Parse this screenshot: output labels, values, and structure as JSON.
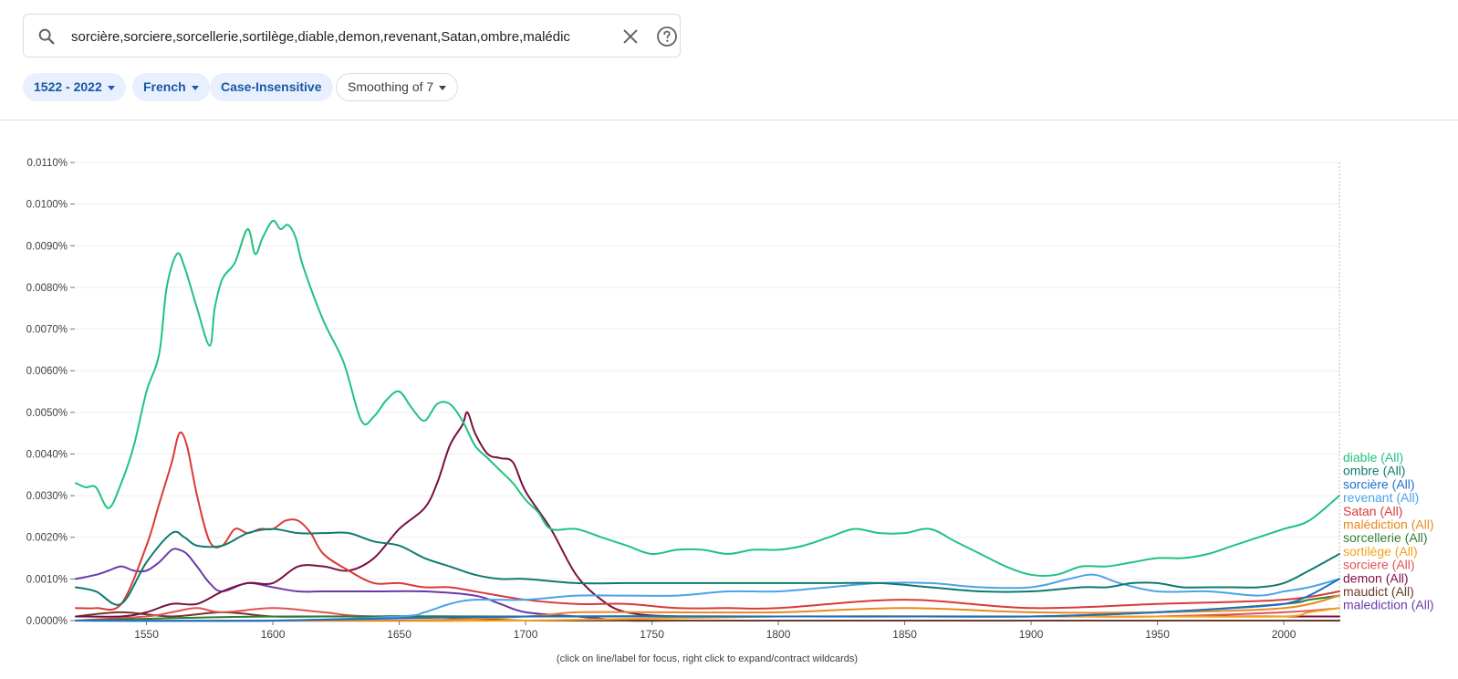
{
  "search": {
    "query": "sorcière,sorciere,sorcellerie,sortilège,diable,demon,revenant,Satan,ombre,malédic",
    "icon": "search-icon",
    "clear_icon": "close-icon",
    "help_icon": "help-icon"
  },
  "filters": {
    "year_range": "1522 - 2022",
    "language": "French",
    "case": "Case-Insensitive",
    "smoothing": "Smoothing of 7"
  },
  "footer_note": "(click on line/label for focus, right click to expand/contract wildcards)",
  "chart_data": {
    "type": "line",
    "title": "",
    "xlabel": "",
    "ylabel": "",
    "xlim": [
      1522,
      2022
    ],
    "ylim": [
      0,
      0.011
    ],
    "x_ticks": [
      1550,
      1600,
      1650,
      1700,
      1750,
      1800,
      1850,
      1900,
      1950,
      2000
    ],
    "y_ticks": [
      {
        "value": 0.0,
        "label": "0.0000%"
      },
      {
        "value": 0.001,
        "label": "0.0010%"
      },
      {
        "value": 0.002,
        "label": "0.0020%"
      },
      {
        "value": 0.003,
        "label": "0.0030%"
      },
      {
        "value": 0.004,
        "label": "0.0040%"
      },
      {
        "value": 0.005,
        "label": "0.0050%"
      },
      {
        "value": 0.006,
        "label": "0.0060%"
      },
      {
        "value": 0.007,
        "label": "0.0070%"
      },
      {
        "value": 0.008,
        "label": "0.0080%"
      },
      {
        "value": 0.009,
        "label": "0.0090%"
      },
      {
        "value": 0.01,
        "label": "0.0100%"
      },
      {
        "value": 0.011,
        "label": "0.0110%"
      }
    ],
    "series": [
      {
        "name": "diable (All)",
        "key": "diable",
        "color": "#1ec37e",
        "x": [
          1522,
          1526,
          1530,
          1535,
          1540,
          1545,
          1550,
          1555,
          1558,
          1562,
          1565,
          1570,
          1575,
          1577,
          1580,
          1585,
          1590,
          1593,
          1596,
          1600,
          1603,
          1606,
          1609,
          1612,
          1620,
          1628,
          1635,
          1640,
          1645,
          1650,
          1655,
          1660,
          1665,
          1670,
          1675,
          1680,
          1685,
          1690,
          1695,
          1700,
          1705,
          1710,
          1720,
          1730,
          1740,
          1750,
          1760,
          1770,
          1780,
          1790,
          1800,
          1810,
          1820,
          1830,
          1840,
          1850,
          1860,
          1870,
          1880,
          1890,
          1900,
          1910,
          1920,
          1930,
          1940,
          1950,
          1960,
          1970,
          1980,
          1990,
          2000,
          2010,
          2022
        ],
        "y": [
          0.0033,
          0.0032,
          0.0032,
          0.0027,
          0.0033,
          0.0042,
          0.0055,
          0.0064,
          0.008,
          0.0088,
          0.0085,
          0.0075,
          0.0066,
          0.0075,
          0.0082,
          0.0086,
          0.0094,
          0.0088,
          0.0092,
          0.0096,
          0.0094,
          0.0095,
          0.0092,
          0.0085,
          0.0072,
          0.0062,
          0.0048,
          0.0049,
          0.0053,
          0.0055,
          0.0051,
          0.0048,
          0.0052,
          0.0052,
          0.0048,
          0.0042,
          0.0039,
          0.0036,
          0.0033,
          0.0029,
          0.0026,
          0.0022,
          0.0022,
          0.002,
          0.0018,
          0.0016,
          0.0017,
          0.0017,
          0.0016,
          0.0017,
          0.0017,
          0.0018,
          0.002,
          0.0022,
          0.0021,
          0.0021,
          0.0022,
          0.0019,
          0.0016,
          0.0013,
          0.0011,
          0.0011,
          0.0013,
          0.0013,
          0.0014,
          0.0015,
          0.0015,
          0.0016,
          0.0018,
          0.002,
          0.0022,
          0.0024,
          0.003
        ]
      },
      {
        "name": "ombre (All)",
        "key": "ombre",
        "color": "#0f7a6e",
        "x": [
          1522,
          1530,
          1540,
          1550,
          1560,
          1565,
          1570,
          1580,
          1590,
          1600,
          1610,
          1620,
          1630,
          1640,
          1650,
          1660,
          1670,
          1680,
          1690,
          1700,
          1720,
          1740,
          1760,
          1780,
          1800,
          1820,
          1840,
          1860,
          1880,
          1900,
          1920,
          1930,
          1940,
          1950,
          1960,
          1970,
          1980,
          1990,
          2000,
          2010,
          2022
        ],
        "y": [
          0.0008,
          0.0007,
          0.0004,
          0.0014,
          0.0021,
          0.002,
          0.0018,
          0.0018,
          0.0021,
          0.0022,
          0.0021,
          0.0021,
          0.0021,
          0.0019,
          0.0018,
          0.0015,
          0.0013,
          0.0011,
          0.001,
          0.001,
          0.0009,
          0.0009,
          0.0009,
          0.0009,
          0.0009,
          0.0009,
          0.0009,
          0.0008,
          0.0007,
          0.0007,
          0.0008,
          0.0008,
          0.0009,
          0.0009,
          0.0008,
          0.0008,
          0.0008,
          0.0008,
          0.0009,
          0.0012,
          0.0016
        ]
      },
      {
        "name": "sorcière (All)",
        "key": "sorciere_accent",
        "color": "#1e6fc7",
        "x": [
          1522,
          1600,
          1700,
          1800,
          1900,
          1950,
          1980,
          2000,
          2010,
          2022
        ],
        "y": [
          0,
          0,
          0.0001,
          0.0001,
          0.0001,
          0.0002,
          0.0003,
          0.0004,
          0.0006,
          0.001
        ]
      },
      {
        "name": "revenant (All)",
        "key": "revenant",
        "color": "#4aa3e8",
        "x": [
          1522,
          1600,
          1650,
          1660,
          1670,
          1680,
          1700,
          1720,
          1740,
          1760,
          1780,
          1800,
          1820,
          1840,
          1860,
          1880,
          1900,
          1915,
          1925,
          1935,
          1950,
          1970,
          1990,
          2000,
          2010,
          2022
        ],
        "y": [
          0,
          0,
          0.0001,
          0.0002,
          0.0004,
          0.0005,
          0.0005,
          0.0006,
          0.0006,
          0.0006,
          0.0007,
          0.0007,
          0.0008,
          0.0009,
          0.0009,
          0.0008,
          0.0008,
          0.001,
          0.0011,
          0.0009,
          0.0007,
          0.0007,
          0.0006,
          0.0007,
          0.0008,
          0.001
        ]
      },
      {
        "name": "Satan (All)",
        "key": "satan",
        "color": "#d93a3a",
        "x": [
          1522,
          1530,
          1540,
          1550,
          1555,
          1560,
          1563,
          1566,
          1570,
          1575,
          1580,
          1585,
          1590,
          1595,
          1600,
          1605,
          1610,
          1615,
          1620,
          1630,
          1640,
          1650,
          1660,
          1670,
          1680,
          1700,
          1720,
          1740,
          1760,
          1780,
          1800,
          1850,
          1900,
          1950,
          2000,
          2022
        ],
        "y": [
          0.0003,
          0.0003,
          0.0004,
          0.0018,
          0.0028,
          0.0038,
          0.0045,
          0.0042,
          0.003,
          0.0019,
          0.0018,
          0.0022,
          0.0021,
          0.0022,
          0.0022,
          0.0024,
          0.0024,
          0.0021,
          0.0016,
          0.0012,
          0.0009,
          0.0009,
          0.0008,
          0.0008,
          0.0007,
          0.0005,
          0.0004,
          0.0004,
          0.0003,
          0.0003,
          0.0003,
          0.0005,
          0.0003,
          0.0004,
          0.0005,
          0.0007
        ]
      },
      {
        "name": "malédiction (All)",
        "key": "malediction_accent",
        "color": "#e8891c",
        "x": [
          1522,
          1650,
          1700,
          1720,
          1750,
          1800,
          1850,
          1900,
          1950,
          2000,
          2022
        ],
        "y": [
          0,
          0,
          0.0001,
          0.0002,
          0.0002,
          0.0002,
          0.0003,
          0.0002,
          0.0002,
          0.0003,
          0.0006
        ]
      },
      {
        "name": "sorcellerie (All)",
        "key": "sorcellerie",
        "color": "#2e7d32",
        "x": [
          1522,
          1600,
          1700,
          1800,
          1850,
          1900,
          1950,
          2000,
          2010,
          2022
        ],
        "y": [
          0,
          0.0001,
          0.0001,
          0.0001,
          0.0001,
          0.0001,
          0.0002,
          0.0004,
          0.0005,
          0.0006
        ]
      },
      {
        "name": "sortilège (All)",
        "key": "sortilege",
        "color": "#f2a31b",
        "x": [
          1522,
          1600,
          1700,
          1800,
          1900,
          1950,
          2000,
          2010,
          2022
        ],
        "y": [
          0,
          0,
          0,
          0.0001,
          0.0001,
          0.0001,
          0.0001,
          0.0002,
          0.0003
        ]
      },
      {
        "name": "sorciere (All)",
        "key": "sorciere",
        "color": "#e05353",
        "x": [
          1522,
          1550,
          1560,
          1570,
          1580,
          1600,
          1620,
          1640,
          1700,
          1800,
          1900,
          1950,
          2000,
          2022
        ],
        "y": [
          0,
          0.0001,
          0.0002,
          0.0003,
          0.0002,
          0.0003,
          0.0002,
          0.0001,
          0.0001,
          0.0001,
          0.0001,
          0.0001,
          0.0002,
          0.0003
        ]
      },
      {
        "name": "demon (All)",
        "key": "demon",
        "color": "#7a0f42",
        "x": [
          1522,
          1540,
          1550,
          1560,
          1570,
          1580,
          1590,
          1600,
          1610,
          1620,
          1630,
          1640,
          1650,
          1660,
          1665,
          1670,
          1675,
          1677,
          1680,
          1685,
          1690,
          1695,
          1700,
          1710,
          1720,
          1730,
          1740,
          1760,
          1800,
          1900,
          2000,
          2022
        ],
        "y": [
          0.0001,
          0.0001,
          0.0002,
          0.0004,
          0.0004,
          0.0007,
          0.0009,
          0.0009,
          0.0013,
          0.0013,
          0.0012,
          0.0015,
          0.0022,
          0.0027,
          0.0033,
          0.0042,
          0.0047,
          0.005,
          0.0045,
          0.004,
          0.0039,
          0.0038,
          0.0031,
          0.0022,
          0.0011,
          0.0005,
          0.0002,
          0.0001,
          0.0001,
          0.0001,
          0.0001,
          0.0001
        ]
      },
      {
        "name": "maudict (All)",
        "key": "maudict",
        "color": "#6b3a2a",
        "x": [
          1522,
          1540,
          1560,
          1580,
          1600,
          1620,
          1640,
          1660,
          1700,
          1800,
          2022
        ],
        "y": [
          0.0001,
          0.0002,
          0.0001,
          0.0002,
          0.0001,
          0.0001,
          0.0001,
          0.0001,
          0,
          0,
          0
        ]
      },
      {
        "name": "malediction (All)",
        "key": "malediction",
        "color": "#6a3aa8",
        "x": [
          1522,
          1530,
          1535,
          1540,
          1545,
          1550,
          1555,
          1560,
          1563,
          1566,
          1570,
          1575,
          1580,
          1590,
          1600,
          1610,
          1620,
          1640,
          1660,
          1680,
          1690,
          1700,
          1720,
          1740,
          1760,
          1800,
          1900,
          2000,
          2022
        ],
        "y": [
          0.001,
          0.0011,
          0.0012,
          0.0013,
          0.0012,
          0.0012,
          0.0014,
          0.0017,
          0.0017,
          0.0016,
          0.0013,
          0.0009,
          0.0007,
          0.0009,
          0.0008,
          0.0007,
          0.0007,
          0.0007,
          0.0007,
          0.0006,
          0.0004,
          0.0002,
          0.0001,
          0,
          0,
          0,
          0,
          0,
          0
        ]
      }
    ]
  }
}
